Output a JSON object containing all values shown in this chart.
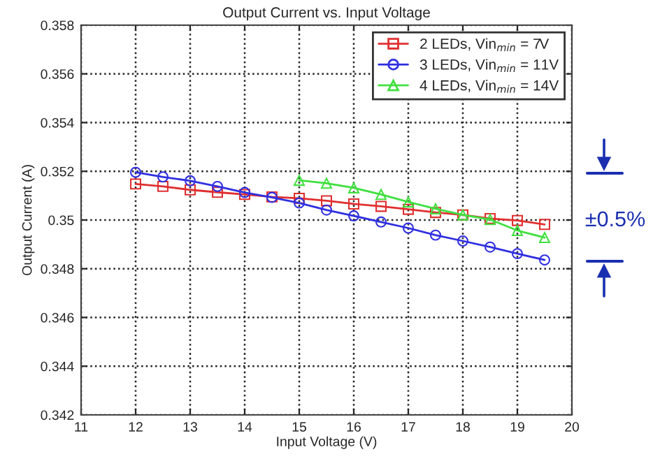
{
  "chart_data": {
    "type": "line",
    "title": "Output Current vs. Input Voltage",
    "xlabel": "Input Voltage (V)",
    "ylabel": "Output Current (A)",
    "xlim": [
      11,
      20
    ],
    "xticks": [
      11,
      12,
      13,
      14,
      15,
      16,
      17,
      18,
      19,
      20
    ],
    "ylim": [
      0.342,
      0.358
    ],
    "yticks": [
      0.342,
      0.344,
      0.346,
      0.348,
      0.35,
      0.352,
      0.354,
      0.356,
      0.358
    ],
    "grid": true,
    "legend": "top right",
    "line_style": "solid",
    "annotations": [
      "±0.5%"
    ],
    "series": [
      {
        "name": "2 LEDs, Vin$_{min}$ = 7V",
        "color": "#e03030",
        "marker": "square",
        "x": [
          12,
          12.5,
          13,
          13.5,
          14,
          14.5,
          15,
          15.5,
          16,
          16.5,
          17,
          17.5,
          18,
          18.5,
          19,
          19.5
        ],
        "values": [
          0.35148,
          0.35138,
          0.35124,
          0.35114,
          0.35105,
          0.35095,
          0.35089,
          0.35079,
          0.35066,
          0.35056,
          0.35044,
          0.35031,
          0.35021,
          0.35006,
          0.34998,
          0.34982
        ]
      },
      {
        "name": "3 LEDs, Vin$_{min}$ = 11V",
        "color": "#3030e0",
        "marker": "circle",
        "x": [
          12,
          12.5,
          13,
          13.5,
          14,
          14.5,
          15,
          15.5,
          16,
          16.5,
          17,
          17.5,
          18,
          18.5,
          19,
          19.5
        ],
        "values": [
          0.35196,
          0.35177,
          0.35161,
          0.35138,
          0.35113,
          0.35093,
          0.3507,
          0.35041,
          0.35017,
          0.34992,
          0.34967,
          0.34938,
          0.34914,
          0.34889,
          0.34862,
          0.34836
        ]
      },
      {
        "name": "4 LEDs, Vin$_{min}$ = 14V",
        "color": "#40e040",
        "marker": "triangle",
        "x": [
          15,
          15.5,
          16,
          16.5,
          17,
          17.5,
          18,
          18.5,
          19,
          19.5
        ],
        "values": [
          0.35163,
          0.35151,
          0.35132,
          0.35105,
          0.35074,
          0.35046,
          0.35021,
          0.35002,
          0.34957,
          0.34928
        ]
      }
    ]
  }
}
